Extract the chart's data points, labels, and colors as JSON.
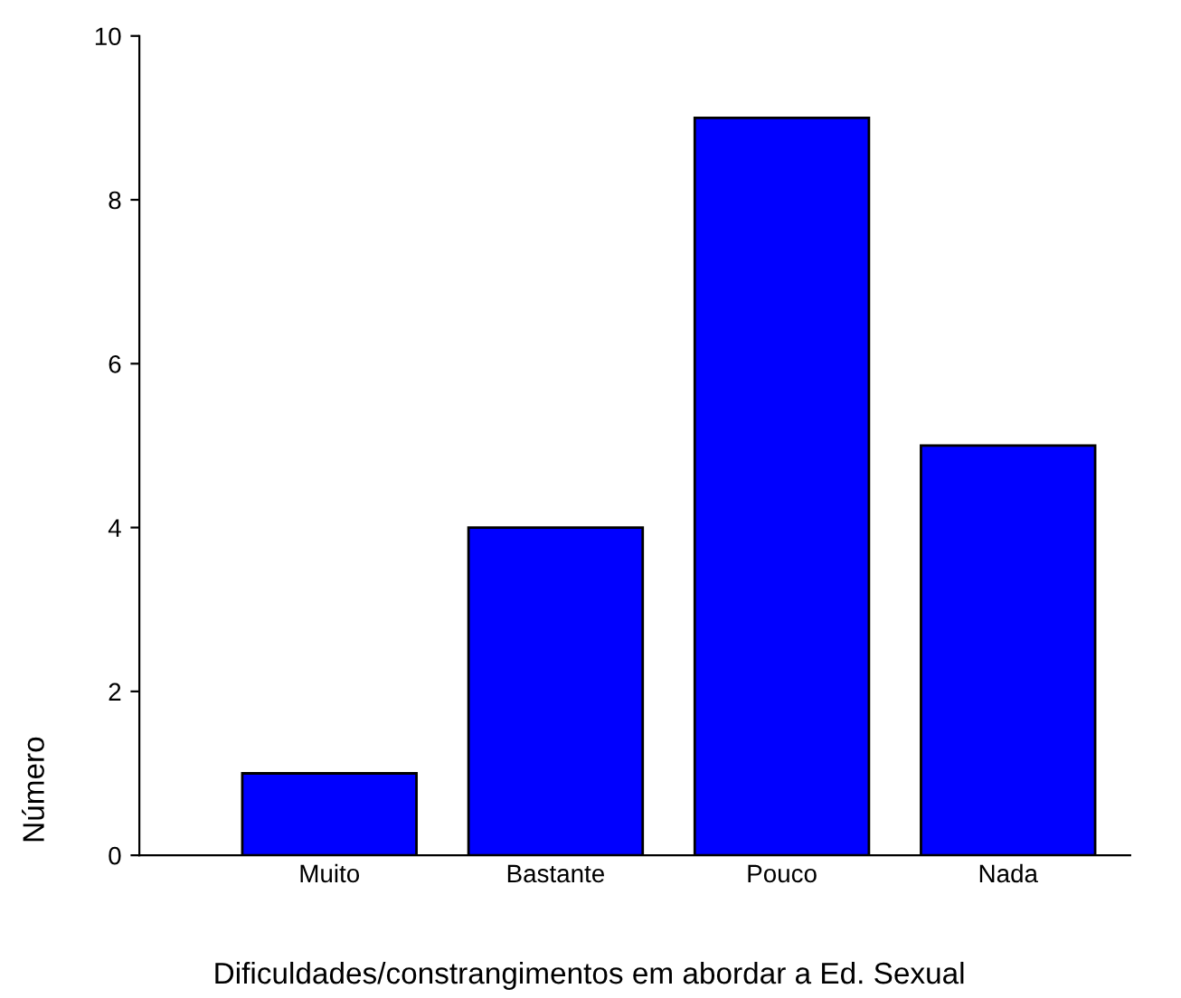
{
  "chart_data": {
    "type": "bar",
    "xlabel": "Dificuldades/constrangimentos em abordar a Ed. Sexual",
    "ylabel": "Número",
    "categories": [
      "Muito",
      "Bastante",
      "Pouco",
      "Nada"
    ],
    "values": [
      1,
      4,
      9,
      5
    ],
    "color": "#0000ff",
    "ylim": [
      0,
      10
    ],
    "yticks": [
      0,
      2,
      4,
      6,
      8,
      10
    ],
    "grid": false
  }
}
